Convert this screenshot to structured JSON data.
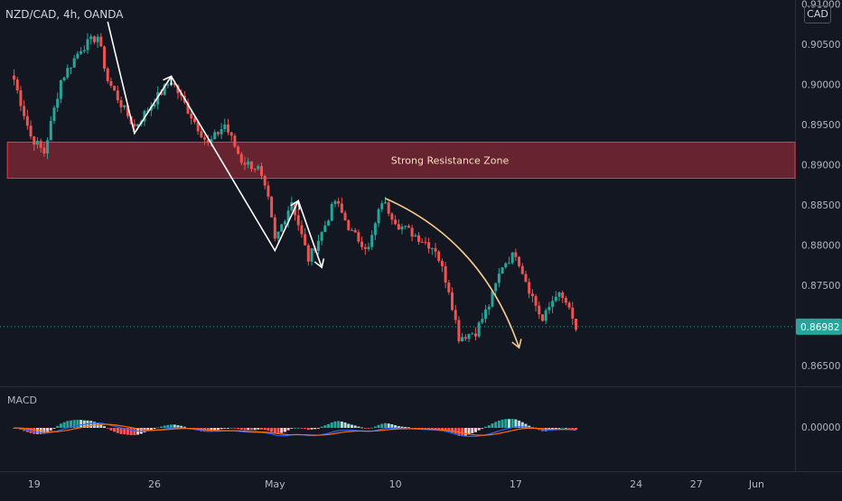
{
  "header": {
    "symbol_title": "NZD/CAD, 4h, OANDA",
    "currency": "CAD"
  },
  "macd": {
    "label": "MACD"
  },
  "current_price": {
    "label": "0.86982",
    "value": 0.86982,
    "color": "#26a69a"
  },
  "colors": {
    "up": "#26a69a",
    "down": "#ef5350",
    "zone_fill": "#f23645",
    "zone_border": "#f23645",
    "arrow": "#ffffff",
    "curve": "#f5c788",
    "macd_line": "#2962ff",
    "signal_line": "#ff6d00",
    "hist_up_strong": "#26a69a",
    "hist_up_weak": "#b2dfdb",
    "hist_down_strong": "#ff5252",
    "hist_down_weak": "#ffcdd2"
  },
  "chart_data": {
    "type": "candlestick",
    "title": "NZD/CAD, 4h, OANDA",
    "ylim": [
      0.8625,
      0.9105
    ],
    "y_ticks": [
      "0.91000",
      "0.90500",
      "0.90000",
      "0.89500",
      "0.89000",
      "0.88500",
      "0.88000",
      "0.87500",
      "0.87000",
      "0.86500"
    ],
    "y_tick_values": [
      0.91,
      0.905,
      0.9,
      0.895,
      0.89,
      0.885,
      0.88,
      0.875,
      0.87,
      0.865
    ],
    "x_ticks": [
      {
        "label": "19",
        "bar": 6
      },
      {
        "label": "26",
        "bar": 42
      },
      {
        "label": "May",
        "bar": 78
      },
      {
        "label": "10",
        "bar": 114
      },
      {
        "label": "17",
        "bar": 150
      },
      {
        "label": "24",
        "bar": 186
      },
      {
        "label": "27",
        "bar": 204
      },
      {
        "label": "Jun",
        "bar": 222
      }
    ],
    "x_range_bars": [
      -4.2,
      233.5
    ],
    "anchors": [
      [
        0,
        0.9006
      ],
      [
        5,
        0.8935
      ],
      [
        9,
        0.8915
      ],
      [
        14,
        0.9005
      ],
      [
        20,
        0.9045
      ],
      [
        25,
        0.906
      ],
      [
        28,
        0.9005
      ],
      [
        33,
        0.8968
      ],
      [
        36,
        0.8947
      ],
      [
        42,
        0.898
      ],
      [
        47,
        0.9005
      ],
      [
        52,
        0.8968
      ],
      [
        58,
        0.8925
      ],
      [
        63,
        0.895
      ],
      [
        68,
        0.8905
      ],
      [
        73,
        0.8895
      ],
      [
        76,
        0.8855
      ],
      [
        78,
        0.8805
      ],
      [
        83,
        0.8855
      ],
      [
        88,
        0.8782
      ],
      [
        92,
        0.8815
      ],
      [
        96,
        0.8855
      ],
      [
        101,
        0.8815
      ],
      [
        106,
        0.8795
      ],
      [
        110,
        0.8855
      ],
      [
        115,
        0.8825
      ],
      [
        120,
        0.8812
      ],
      [
        126,
        0.8795
      ],
      [
        130,
        0.8745
      ],
      [
        133,
        0.8685
      ],
      [
        138,
        0.8692
      ],
      [
        142,
        0.8725
      ],
      [
        146,
        0.8775
      ],
      [
        150,
        0.879
      ],
      [
        154,
        0.8745
      ],
      [
        158,
        0.8705
      ],
      [
        162,
        0.874
      ],
      [
        165,
        0.8728
      ],
      [
        168,
        0.8695
      ]
    ],
    "zone": {
      "label": "Strong Resistance Zone",
      "y_top": 0.8928,
      "y_bottom": 0.8883,
      "bar_start": -2
    },
    "zigzag_arrows": [
      [
        [
          28,
          0.9078
        ],
        [
          36,
          0.8939
        ],
        [
          47,
          0.901
        ]
      ],
      [
        [
          47,
          0.901
        ],
        [
          78,
          0.8793
        ],
        [
          85,
          0.8855
        ]
      ],
      [
        [
          85,
          0.8855
        ],
        [
          92,
          0.8772
        ]
      ]
    ],
    "curve_arrow": {
      "points": [
        [
          111,
          0.8858
        ],
        [
          140,
          0.8805
        ],
        [
          151,
          0.8672
        ]
      ]
    },
    "macd_hist": [
      -3e-05,
      -2e-05,
      -1e-05,
      -1e-05,
      0,
      0,
      -1e-05,
      -1e-05,
      -1e-05,
      -1e-05,
      -1e-05,
      -1e-05,
      -1e-05,
      -1e-05,
      -1e-05,
      -1e-05,
      0,
      0,
      0,
      0,
      0,
      0,
      0,
      1e-05,
      1e-05,
      1e-05,
      1e-05,
      1e-05,
      1e-05,
      1e-05,
      1e-05,
      1e-05,
      -1e-05,
      -1e-05,
      -1e-05,
      -1e-05,
      -1e-05,
      -1e-05,
      -1e-05,
      -1e-05,
      -1e-05,
      -1e-05,
      -1e-05,
      -1e-05,
      -1e-05,
      -1e-05,
      -1e-05,
      -1e-05,
      0,
      0,
      0,
      0,
      -1e-05,
      -1e-05,
      -1e-05,
      -1e-05,
      -1e-05,
      -1e-05,
      -1e-05,
      -1e-05,
      -1e-05,
      -1e-05,
      -1e-05,
      -1e-05,
      -1e-05,
      -1e-05,
      -1e-05,
      -1e-05,
      -1e-05,
      -1e-05,
      -1e-05,
      -1e-05,
      -1e-05,
      -1e-05,
      -1e-05,
      -1e-05,
      -1e-05,
      -1e-05,
      -1e-05,
      0,
      0,
      0,
      0,
      0,
      1e-05,
      1e-05,
      1e-05,
      1e-05,
      1e-05,
      0,
      0,
      0,
      0,
      0,
      0,
      0,
      0,
      0,
      0,
      0,
      0,
      0,
      0,
      0,
      0,
      0,
      0,
      0,
      0,
      0,
      0,
      0,
      0,
      0,
      0,
      0,
      -1e-05,
      -1e-05,
      -1e-05,
      -1e-05,
      -1e-05,
      -1e-05,
      -1e-05,
      -1e-05,
      -1e-05,
      -1e-05,
      -1e-05,
      -1e-05,
      0,
      0,
      0,
      0,
      0,
      0,
      0,
      0,
      0,
      0,
      0,
      0,
      0,
      0,
      0,
      0,
      0,
      0,
      0,
      0,
      0,
      0,
      0,
      0,
      0,
      0,
      0,
      0,
      0,
      0,
      0,
      0,
      0,
      0,
      0,
      0,
      0,
      0,
      0,
      0,
      0,
      0
    ],
    "macd_tick": "0.00000"
  }
}
